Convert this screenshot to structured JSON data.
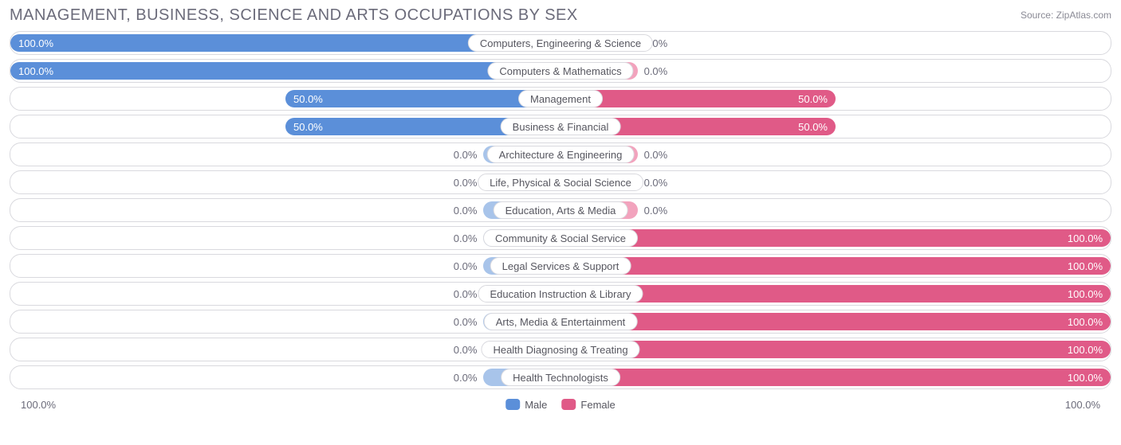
{
  "title": "MANAGEMENT, BUSINESS, SCIENCE AND ARTS OCCUPATIONS BY SEX",
  "source_label": "Source: ZipAtlas.com",
  "colors": {
    "male_full": "#5b8fd9",
    "male_light": "#a8c4ea",
    "female_full": "#e05a87",
    "female_light": "#f2a3bd",
    "border": "#d9d9de",
    "text": "#6b6b7a",
    "label_text": "#56565f",
    "inside_text": "#ffffff",
    "background": "#ffffff"
  },
  "min_bar_pct": 14,
  "pct_inside_threshold": 25,
  "axis": {
    "left": "100.0%",
    "right": "100.0%"
  },
  "legend": {
    "male": "Male",
    "female": "Female"
  },
  "rows": [
    {
      "label": "Computers, Engineering & Science",
      "male": 100.0,
      "female": 0.0,
      "has_data": true
    },
    {
      "label": "Computers & Mathematics",
      "male": 100.0,
      "female": 0.0,
      "has_data": true
    },
    {
      "label": "Management",
      "male": 50.0,
      "female": 50.0,
      "has_data": true
    },
    {
      "label": "Business & Financial",
      "male": 50.0,
      "female": 50.0,
      "has_data": true
    },
    {
      "label": "Architecture & Engineering",
      "male": 0.0,
      "female": 0.0,
      "has_data": false
    },
    {
      "label": "Life, Physical & Social Science",
      "male": 0.0,
      "female": 0.0,
      "has_data": false
    },
    {
      "label": "Education, Arts & Media",
      "male": 0.0,
      "female": 0.0,
      "has_data": false
    },
    {
      "label": "Community & Social Service",
      "male": 0.0,
      "female": 100.0,
      "has_data": true
    },
    {
      "label": "Legal Services & Support",
      "male": 0.0,
      "female": 100.0,
      "has_data": true
    },
    {
      "label": "Education Instruction & Library",
      "male": 0.0,
      "female": 100.0,
      "has_data": true
    },
    {
      "label": "Arts, Media & Entertainment",
      "male": 0.0,
      "female": 100.0,
      "has_data": true
    },
    {
      "label": "Health Diagnosing & Treating",
      "male": 0.0,
      "female": 100.0,
      "has_data": true
    },
    {
      "label": "Health Technologists",
      "male": 0.0,
      "female": 100.0,
      "has_data": true
    }
  ]
}
